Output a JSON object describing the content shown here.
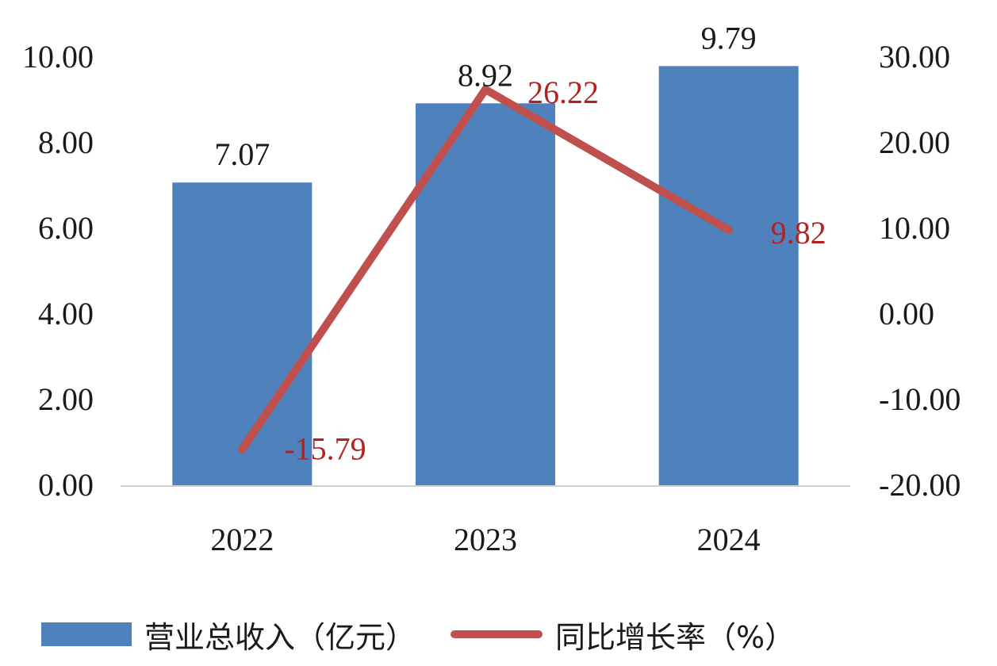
{
  "chart_data": {
    "type": "bar",
    "categories": [
      "2022",
      "2023",
      "2024"
    ],
    "series": [
      {
        "name": "营业总收入（亿元）",
        "type": "bar",
        "axis": "left",
        "values": [
          7.07,
          8.92,
          9.79
        ],
        "color": "#4f81bd"
      },
      {
        "name": "同比增长率（%）",
        "type": "line",
        "axis": "right",
        "values": [
          -15.79,
          26.22,
          9.82
        ],
        "color": "#c0504d"
      }
    ],
    "bar_labels": [
      "7.07",
      "8.92",
      "9.79"
    ],
    "line_labels": [
      "-15.79",
      "26.22",
      "9.82"
    ],
    "left_axis": {
      "ylim": [
        0,
        10
      ],
      "ticks": [
        "0.00",
        "2.00",
        "4.00",
        "6.00",
        "8.00",
        "10.00"
      ]
    },
    "right_axis": {
      "ylim": [
        -20,
        30
      ],
      "ticks": [
        "-20.00",
        "-10.00",
        "0.00",
        "10.00",
        "20.00",
        "30.00"
      ]
    },
    "title": "",
    "grid": false,
    "legend_position": "bottom"
  },
  "legend": {
    "bar_label": "营业总收入（亿元）",
    "line_label": "同比增长率（%）"
  }
}
